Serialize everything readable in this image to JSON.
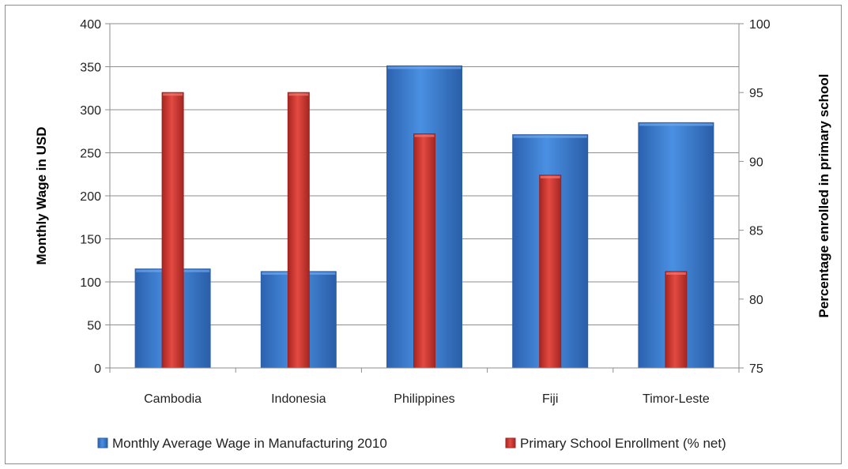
{
  "chart_data": {
    "type": "bar",
    "categories": [
      "Cambodia",
      "Indonesia",
      "Philippines",
      "Fiji",
      "Timor-Leste"
    ],
    "series": [
      {
        "name": "Monthly Average Wage in Manufacturing 2010",
        "axis": "left",
        "values": [
          115,
          112,
          351,
          271,
          285
        ],
        "color": "#3a7fd6"
      },
      {
        "name": "Primary School Enrollment (% net)",
        "axis": "right",
        "values": [
          95,
          95,
          92,
          89,
          82
        ],
        "color": "#d93a34"
      }
    ],
    "ylabel": "Monthly  Wage in USD",
    "y2label": "Percentage enrolled in primary school",
    "ylim": [
      0,
      400
    ],
    "y2lim": [
      75,
      100
    ],
    "yticks": [
      0,
      50,
      100,
      150,
      200,
      250,
      300,
      350,
      400
    ],
    "y2ticks": [
      75,
      80,
      85,
      90,
      95,
      100
    ],
    "grid": true,
    "legend": "bottom"
  }
}
